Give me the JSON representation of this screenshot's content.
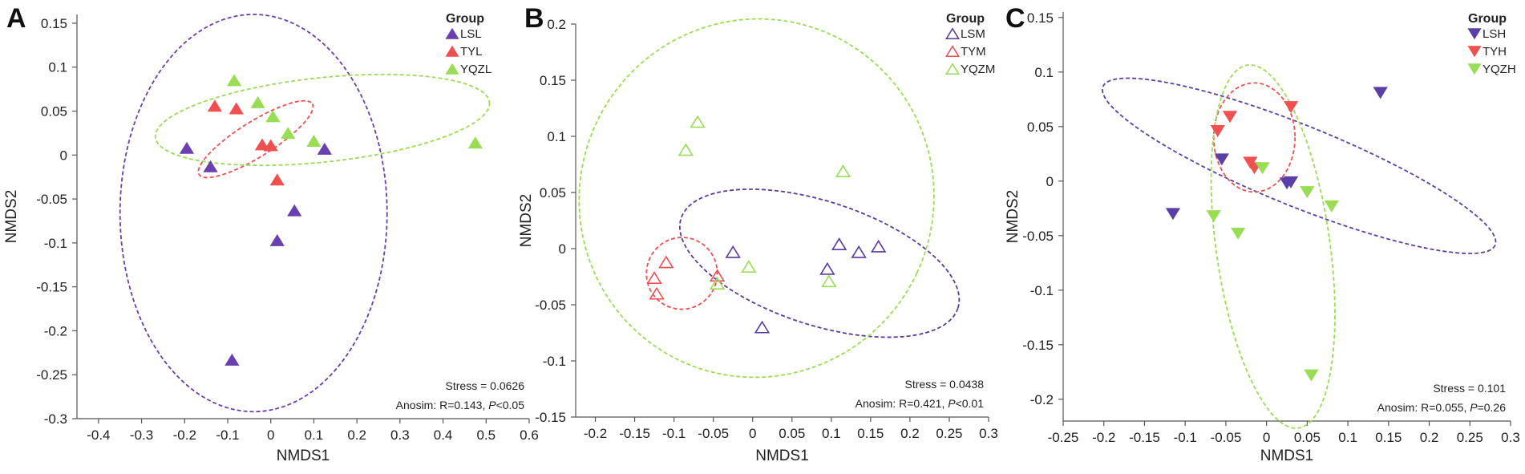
{
  "chart_data": [
    {
      "type": "scatter",
      "panel_label": "A",
      "xlabel": "NMDS1",
      "ylabel": "NMDS2",
      "xlim": [
        -0.45,
        0.6
      ],
      "ylim": [
        -0.3,
        0.16
      ],
      "xticks": [
        -0.4,
        -0.3,
        -0.2,
        -0.1,
        0,
        0.1,
        0.2,
        0.3,
        0.4,
        0.5,
        0.6
      ],
      "xtick_labels": [
        "-0.4",
        "-0.3",
        "-0.2",
        "-0.1",
        "0",
        "0.1",
        "0.2",
        "0.3",
        "0.4",
        "0.5",
        "0.6"
      ],
      "yticks": [
        -0.3,
        -0.25,
        -0.2,
        -0.15,
        -0.1,
        -0.05,
        0,
        0.05,
        0.1,
        0.15
      ],
      "ytick_labels": [
        "-0.3",
        "-0.25",
        "-0.2",
        "-0.15",
        "-0.1",
        "-0.05",
        "0",
        "0.05",
        "0.1",
        "0.15"
      ],
      "legend_title": "Group",
      "marker": "triangle-up-filled",
      "series": [
        {
          "name": "LSL",
          "color": "#6a3fb0",
          "points": [
            [
              -0.195,
              0.008
            ],
            [
              -0.14,
              -0.013
            ],
            [
              -0.09,
              -0.233
            ],
            [
              0.015,
              -0.097
            ],
            [
              0.055,
              -0.063
            ],
            [
              0.125,
              0.007
            ]
          ],
          "ellipse": {
            "cx": -0.04,
            "cy": -0.066,
            "rx": 0.31,
            "ry": 0.226,
            "angle_deg": 0
          }
        },
        {
          "name": "TYL",
          "color": "#f05050",
          "points": [
            [
              -0.13,
              0.056
            ],
            [
              -0.08,
              0.053
            ],
            [
              -0.02,
              0.012
            ],
            [
              0,
              0.011
            ],
            [
              0.015,
              -0.028
            ]
          ],
          "ellipse": {
            "cx": -0.035,
            "cy": 0.018,
            "rx": 0.155,
            "ry": 0.02,
            "angle_deg": -32
          }
        },
        {
          "name": "YQZL",
          "color": "#99dd55",
          "points": [
            [
              -0.085,
              0.085
            ],
            [
              -0.03,
              0.06
            ],
            [
              0.005,
              0.044
            ],
            [
              0.04,
              0.025
            ],
            [
              0.1,
              0.016
            ],
            [
              0.475,
              0.014
            ]
          ],
          "ellipse": {
            "cx": 0.12,
            "cy": 0.04,
            "rx": 0.39,
            "ry": 0.048,
            "angle_deg": -6
          }
        }
      ],
      "stats": {
        "stress": "Stress = 0.0626",
        "anosim_prefix": "Anosim: R=0.143, ",
        "p_symbol": "P",
        "p_suffix": "<0.05"
      }
    },
    {
      "type": "scatter",
      "panel_label": "B",
      "xlabel": "NMDS1",
      "ylabel": "NMDS2",
      "xlim": [
        -0.225,
        0.3
      ],
      "ylim": [
        -0.15,
        0.2
      ],
      "xticks": [
        -0.2,
        -0.15,
        -0.1,
        -0.05,
        0,
        0.05,
        0.1,
        0.15,
        0.2,
        0.25,
        0.3
      ],
      "xtick_labels": [
        "-0.2",
        "-0.15",
        "-0.1",
        "-0.05",
        "0",
        "0.05",
        "0.1",
        "0.15",
        "0.2",
        "0.25",
        "0.3"
      ],
      "yticks": [
        -0.15,
        -0.1,
        -0.05,
        0,
        0.05,
        0.1,
        0.15,
        0.2
      ],
      "ytick_labels": [
        "-0.15",
        "-0.1",
        "-0.05",
        "0",
        "0.05",
        "0.1",
        "0.15",
        "0.2"
      ],
      "legend_title": "Group",
      "marker": "triangle-up-open",
      "series": [
        {
          "name": "LSM",
          "color": "#5a3aa0",
          "points": [
            [
              -0.025,
              -0.003
            ],
            [
              0.012,
              -0.07
            ],
            [
              0.095,
              -0.018
            ],
            [
              0.11,
              0.004
            ],
            [
              0.135,
              -0.003
            ],
            [
              0.16,
              0.002
            ]
          ],
          "ellipse": {
            "cx": 0.085,
            "cy": -0.013,
            "rx": 0.185,
            "ry": 0.055,
            "angle_deg": 18
          }
        },
        {
          "name": "TYM",
          "color": "#f05050",
          "points": [
            [
              -0.11,
              -0.012
            ],
            [
              -0.125,
              -0.026
            ],
            [
              -0.122,
              -0.04
            ],
            [
              -0.045,
              -0.024
            ]
          ],
          "ellipse": {
            "cx": -0.09,
            "cy": -0.022,
            "rx": 0.045,
            "ry": 0.032,
            "angle_deg": 15
          }
        },
        {
          "name": "YQZM",
          "color": "#99dd55",
          "points": [
            [
              -0.07,
              0.113
            ],
            [
              -0.085,
              0.088
            ],
            [
              -0.005,
              -0.016
            ],
            [
              -0.045,
              -0.031
            ],
            [
              0.115,
              0.069
            ],
            [
              0.097,
              -0.029
            ]
          ],
          "ellipse": {
            "cx": 0.005,
            "cy": 0.045,
            "rx": 0.225,
            "ry": 0.16,
            "angle_deg": 25
          }
        }
      ],
      "stats": {
        "stress": "Stress = 0.0438",
        "anosim_prefix": "Anosim: R=0.421, ",
        "p_symbol": "P",
        "p_suffix": "<0.01"
      }
    },
    {
      "type": "scatter",
      "panel_label": "C",
      "xlabel": "NMDS1",
      "ylabel": "NMDS2",
      "xlim": [
        -0.25,
        0.3
      ],
      "ylim": [
        -0.22,
        0.155
      ],
      "xticks": [
        -0.25,
        -0.2,
        -0.15,
        -0.1,
        -0.05,
        0,
        0.05,
        0.1,
        0.15,
        0.2,
        0.25,
        0.3
      ],
      "xtick_labels": [
        "-0.25",
        "-0.2",
        "-0.15",
        "-0.1",
        "-0.05",
        "0",
        "0.05",
        "0.1",
        "0.15",
        "0.2",
        "0.25",
        "0.3"
      ],
      "yticks": [
        -0.2,
        -0.15,
        -0.1,
        -0.05,
        0,
        0.05,
        0.1,
        0.15
      ],
      "ytick_labels": [
        "-0.2",
        "-0.15",
        "-0.1",
        "-0.05",
        "0",
        "0.05",
        "0.1",
        "0.15"
      ],
      "legend_title": "Group",
      "marker": "triangle-down-filled",
      "series": [
        {
          "name": "LSH",
          "color": "#5b3fa8",
          "points": [
            [
              -0.115,
              -0.03
            ],
            [
              -0.055,
              0.02
            ],
            [
              0.025,
              -0.002
            ],
            [
              0.03,
              -0.001
            ],
            [
              0.14,
              0.081
            ]
          ],
          "ellipse": {
            "cx": 0.04,
            "cy": 0.014,
            "rx": 0.26,
            "ry": 0.037,
            "angle_deg": 22
          }
        },
        {
          "name": "TYH",
          "color": "#f05050",
          "points": [
            [
              -0.06,
              0.046
            ],
            [
              -0.045,
              0.059
            ],
            [
              -0.02,
              0.017
            ],
            [
              -0.015,
              0.012
            ],
            [
              0.03,
              0.068
            ]
          ],
          "ellipse": {
            "cx": -0.015,
            "cy": 0.04,
            "rx": 0.05,
            "ry": 0.05,
            "angle_deg": 0
          }
        },
        {
          "name": "YQZH",
          "color": "#99dd55",
          "points": [
            [
              -0.005,
              0.012
            ],
            [
              -0.065,
              -0.032
            ],
            [
              -0.035,
              -0.048
            ],
            [
              0.05,
              -0.01
            ],
            [
              0.08,
              -0.023
            ],
            [
              0.055,
              -0.178
            ]
          ],
          "ellipse": {
            "cx": 0.008,
            "cy": -0.06,
            "rx": 0.07,
            "ry": 0.168,
            "angle_deg": -8
          }
        }
      ],
      "stats": {
        "stress": "Stress = 0.101",
        "anosim_prefix": "Anosim: R=0.055, ",
        "p_symbol": "P",
        "p_suffix": "=0.26"
      }
    }
  ]
}
